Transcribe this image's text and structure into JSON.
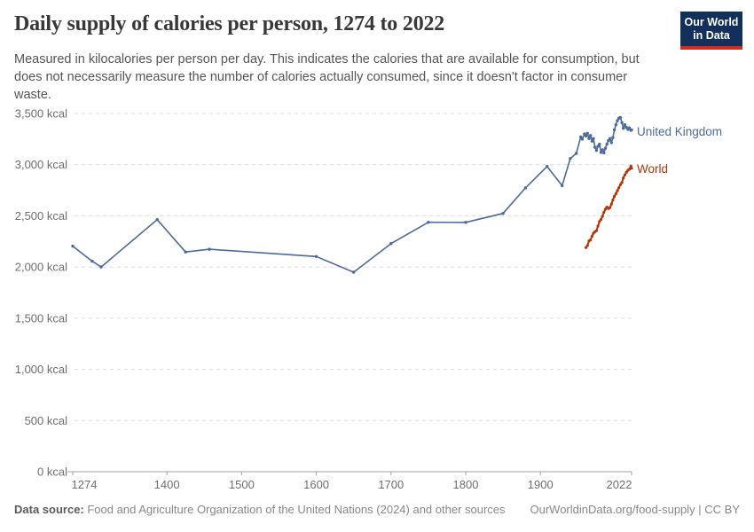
{
  "header": {
    "title": "Daily supply of calories per person, 1274 to 2022",
    "subtitle_lines": [
      "Measured in kilocalories per person per day. This indicates the calories that are available for consumption, but",
      "does not necessarily measure the number of calories actually consumed, since it doesn't factor in consumer",
      "waste."
    ]
  },
  "logo": {
    "line1": "Our World",
    "line2": "in Data",
    "bg_color": "#12305B",
    "stripe_color": "#D42B21"
  },
  "chart_data": {
    "type": "line",
    "title": "Daily supply of calories per person, 1274 to 2022",
    "xlabel": "",
    "ylabel": "",
    "x_range": [
      1274,
      2022
    ],
    "y_range": [
      0,
      3500
    ],
    "grid": "horizontal-dashed",
    "legend_position": "line-end-labels",
    "x_ticks": [
      {
        "year": 1274,
        "label": "1274",
        "label_dx": 13
      },
      {
        "year": 1400,
        "label": "1400",
        "label_dx": 0
      },
      {
        "year": 1500,
        "label": "1500",
        "label_dx": 0
      },
      {
        "year": 1600,
        "label": "1600",
        "label_dx": 0
      },
      {
        "year": 1700,
        "label": "1700",
        "label_dx": 0
      },
      {
        "year": 1800,
        "label": "1800",
        "label_dx": 0
      },
      {
        "year": 1900,
        "label": "1900",
        "label_dx": 0
      },
      {
        "year": 2022,
        "label": "2022",
        "label_dx": -14
      }
    ],
    "y_ticks": [
      {
        "value": 0,
        "label": "0 kcal"
      },
      {
        "value": 500,
        "label": "500 kcal"
      },
      {
        "value": 1000,
        "label": "1,000 kcal"
      },
      {
        "value": 1500,
        "label": "1,500 kcal"
      },
      {
        "value": 2000,
        "label": "2,000 kcal"
      },
      {
        "value": 2500,
        "label": "2,500 kcal"
      },
      {
        "value": 3000,
        "label": "3,000 kcal"
      },
      {
        "value": 3500,
        "label": "3,500 kcal"
      }
    ],
    "series": [
      {
        "name": "United Kingdom",
        "color": "#4C6A9C",
        "points": [
          [
            1274,
            2204
          ],
          [
            1300,
            2057
          ],
          [
            1312,
            2000
          ],
          [
            1387,
            2463
          ],
          [
            1425,
            2147
          ],
          [
            1457,
            2174
          ],
          [
            1600,
            2103
          ],
          [
            1650,
            1949
          ],
          [
            1700,
            2229
          ],
          [
            1750,
            2437
          ],
          [
            1800,
            2436
          ],
          [
            1850,
            2524
          ],
          [
            1880,
            2773
          ],
          [
            1909,
            2983
          ],
          [
            1929,
            2795
          ],
          [
            1940,
            3060
          ],
          [
            1948,
            3110
          ],
          [
            1954,
            3270
          ],
          [
            1956,
            3250
          ],
          [
            1959,
            3300
          ],
          [
            1961,
            3280
          ],
          [
            1963,
            3305
          ],
          [
            1965,
            3255
          ],
          [
            1967,
            3285
          ],
          [
            1969,
            3230
          ],
          [
            1971,
            3255
          ],
          [
            1973,
            3170
          ],
          [
            1975,
            3140
          ],
          [
            1977,
            3180
          ],
          [
            1979,
            3200
          ],
          [
            1981,
            3120
          ],
          [
            1983,
            3145
          ],
          [
            1985,
            3115
          ],
          [
            1987,
            3160
          ],
          [
            1989,
            3200
          ],
          [
            1991,
            3235
          ],
          [
            1993,
            3255
          ],
          [
            1995,
            3215
          ],
          [
            1997,
            3265
          ],
          [
            1999,
            3340
          ],
          [
            2001,
            3390
          ],
          [
            2003,
            3430
          ],
          [
            2005,
            3455
          ],
          [
            2007,
            3460
          ],
          [
            2009,
            3410
          ],
          [
            2011,
            3355
          ],
          [
            2013,
            3390
          ],
          [
            2015,
            3365
          ],
          [
            2017,
            3345
          ],
          [
            2019,
            3360
          ],
          [
            2021,
            3335
          ],
          [
            2022,
            3340
          ]
        ]
      },
      {
        "name": "World",
        "color": "#B13507",
        "points": [
          [
            1961,
            2190
          ],
          [
            1963,
            2210
          ],
          [
            1965,
            2255
          ],
          [
            1967,
            2265
          ],
          [
            1969,
            2300
          ],
          [
            1971,
            2330
          ],
          [
            1973,
            2345
          ],
          [
            1975,
            2355
          ],
          [
            1977,
            2400
          ],
          [
            1979,
            2445
          ],
          [
            1981,
            2465
          ],
          [
            1983,
            2495
          ],
          [
            1985,
            2535
          ],
          [
            1987,
            2565
          ],
          [
            1989,
            2585
          ],
          [
            1991,
            2570
          ],
          [
            1993,
            2580
          ],
          [
            1995,
            2615
          ],
          [
            1997,
            2655
          ],
          [
            1999,
            2690
          ],
          [
            2001,
            2715
          ],
          [
            2003,
            2745
          ],
          [
            2005,
            2775
          ],
          [
            2007,
            2805
          ],
          [
            2009,
            2825
          ],
          [
            2011,
            2870
          ],
          [
            2013,
            2900
          ],
          [
            2015,
            2925
          ],
          [
            2017,
            2945
          ],
          [
            2019,
            2955
          ],
          [
            2021,
            2985
          ],
          [
            2022,
            2965
          ]
        ]
      }
    ]
  },
  "footer": {
    "source_label": "Data source:",
    "source_text": " Food and Agriculture Organization of the United Nations (2024) and other sources",
    "credit": "OurWorldinData.org/food-supply | CC BY"
  }
}
